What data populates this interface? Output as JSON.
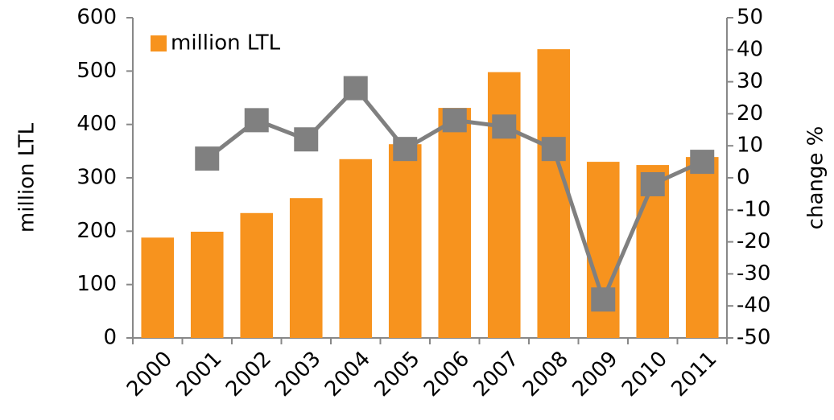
{
  "chart_data": {
    "type": "bar_line",
    "categories": [
      "2000",
      "2001",
      "2002",
      "2003",
      "2004",
      "2005",
      "2006",
      "2007",
      "2008",
      "2009",
      "2010",
      "2011"
    ],
    "series": [
      {
        "name": "million LTL",
        "type": "bar",
        "color": "#f7931e",
        "values": [
          188,
          199,
          234,
          262,
          335,
          363,
          431,
          498,
          541,
          330,
          324,
          339
        ]
      },
      {
        "type": "line",
        "axis": "y2",
        "color": "#808080",
        "values": [
          null,
          6,
          18,
          12,
          28,
          9,
          18,
          16,
          9,
          -38,
          -2,
          5
        ]
      }
    ],
    "ylabel": "million LTL",
    "y2label": "change  %",
    "ylim": [
      0,
      600
    ],
    "yticks": [
      0,
      100,
      200,
      300,
      400,
      500,
      600
    ],
    "y2lim": [
      -50,
      50
    ],
    "y2ticks": [
      -50,
      -40,
      -30,
      -20,
      -10,
      0,
      10,
      20,
      30,
      40,
      50
    ],
    "legend": "top-left",
    "grid": false
  }
}
